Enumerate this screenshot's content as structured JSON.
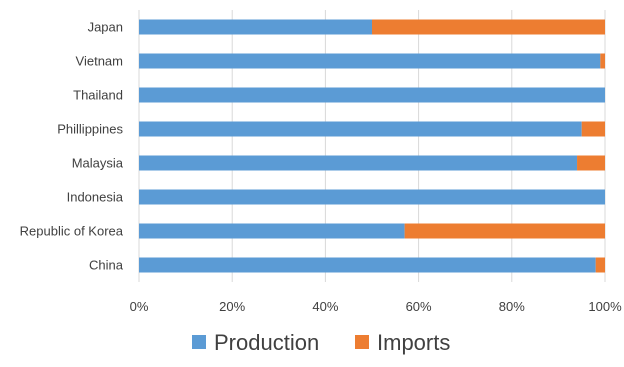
{
  "chart_data": {
    "type": "bar",
    "orientation": "horizontal",
    "stacked": true,
    "normalized_percent": true,
    "categories": [
      "Japan",
      "Vietnam",
      "Thailand",
      "Phillippines",
      "Malaysia",
      "Indonesia",
      "Republic of Korea",
      "China"
    ],
    "series": [
      {
        "name": "Production",
        "color": "#5b9bd5",
        "values": [
          50,
          99,
          100,
          95,
          94,
          100,
          57,
          98
        ]
      },
      {
        "name": "Imports",
        "color": "#ed7d31",
        "values": [
          50,
          1,
          0,
          5,
          6,
          0,
          43,
          2
        ]
      }
    ],
    "x_ticks": [
      "0%",
      "20%",
      "40%",
      "60%",
      "80%",
      "100%"
    ],
    "xlim": [
      0,
      100
    ],
    "grid": "vertical",
    "legend": {
      "position": "bottom",
      "items": [
        "Production",
        "Imports"
      ]
    },
    "title": "",
    "xlabel": "",
    "ylabel": ""
  }
}
